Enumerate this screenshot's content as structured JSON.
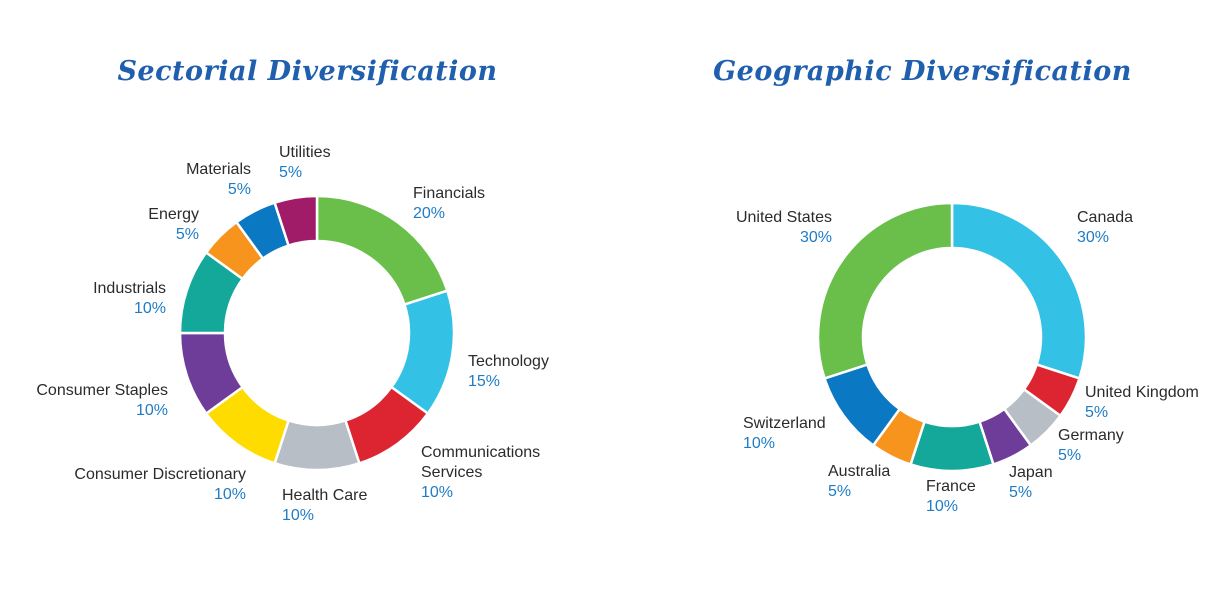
{
  "chart_data": [
    {
      "type": "pie",
      "title": "Sectorial Diversification",
      "unit": "%",
      "slices": [
        {
          "label": "Financials",
          "value": 20,
          "value_label": "20%",
          "color": "#6abf4b"
        },
        {
          "label": "Technology",
          "value": 15,
          "value_label": "15%",
          "color": "#33c2e5"
        },
        {
          "label": [
            "Communications",
            "Services"
          ],
          "value": 10,
          "value_label": "10%",
          "color": "#dd2532"
        },
        {
          "label": "Health Care",
          "value": 10,
          "value_label": "10%",
          "color": "#b7bec5"
        },
        {
          "label": "Consumer Discretionary",
          "value": 10,
          "value_label": "10%",
          "color": "#ffdc00"
        },
        {
          "label": "Consumer Staples",
          "value": 10,
          "value_label": "10%",
          "color": "#6e3d9a"
        },
        {
          "label": "Industrials",
          "value": 10,
          "value_label": "10%",
          "color": "#14a89b"
        },
        {
          "label": "Energy",
          "value": 5,
          "value_label": "5%",
          "color": "#f7941d"
        },
        {
          "label": "Materials",
          "value": 5,
          "value_label": "5%",
          "color": "#0b78c3"
        },
        {
          "label": "Utilities",
          "value": 5,
          "value_label": "5%",
          "color": "#a01b68"
        }
      ]
    },
    {
      "type": "pie",
      "title": "Geographic Diversification",
      "unit": "%",
      "slices": [
        {
          "label": "Canada",
          "value": 30,
          "value_label": "30%",
          "color": "#33c2e5"
        },
        {
          "label": "United Kingdom",
          "value": 5,
          "value_label": "5%",
          "color": "#dd2532"
        },
        {
          "label": "Germany",
          "value": 5,
          "value_label": "5%",
          "color": "#b7bec5"
        },
        {
          "label": "Japan",
          "value": 5,
          "value_label": "5%",
          "color": "#6e3d9a"
        },
        {
          "label": "France",
          "value": 10,
          "value_label": "10%",
          "color": "#14a89b"
        },
        {
          "label": "Australia",
          "value": 5,
          "value_label": "5%",
          "color": "#f7941d"
        },
        {
          "label": "Switzerland",
          "value": 10,
          "value_label": "10%",
          "color": "#0b78c3"
        },
        {
          "label": "United States",
          "value": 30,
          "value_label": "30%",
          "color": "#6abf4b"
        }
      ]
    }
  ]
}
